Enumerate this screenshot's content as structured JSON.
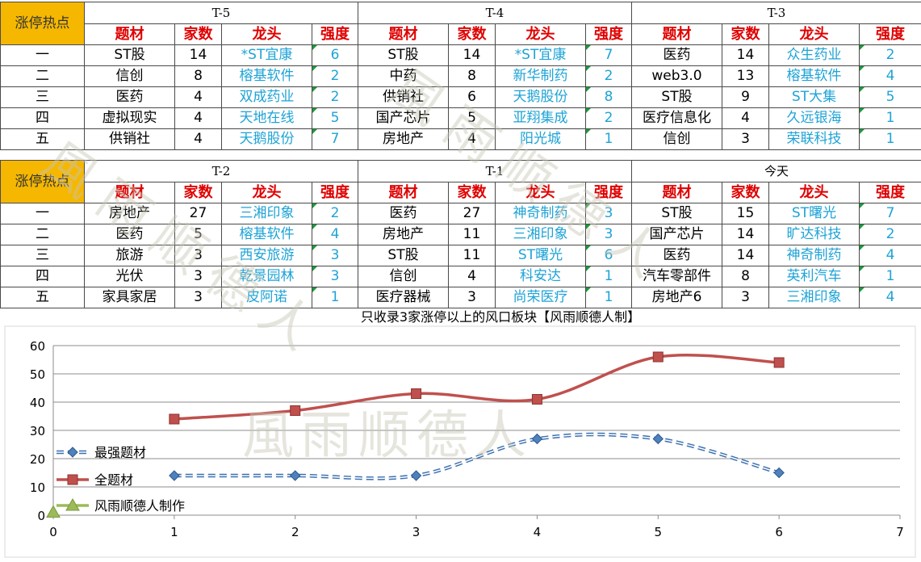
{
  "tables": [
    {
      "corner_label": "涨停热点",
      "col_headers": [
        "题材",
        "家数",
        "龙头",
        "强度"
      ],
      "periods": [
        {
          "label": "T-5",
          "rows": [
            {
              "theme": "ST股",
              "count": "14",
              "leader": "*ST宜康",
              "strength": "6"
            },
            {
              "theme": "信创",
              "count": "8",
              "leader": "榕基软件",
              "strength": "2"
            },
            {
              "theme": "医药",
              "count": "4",
              "leader": "双成药业",
              "strength": "2"
            },
            {
              "theme": "虚拟现实",
              "count": "4",
              "leader": "天地在线",
              "strength": "5"
            },
            {
              "theme": "供销社",
              "count": "4",
              "leader": "天鹅股份",
              "strength": "7"
            }
          ]
        },
        {
          "label": "T-4",
          "rows": [
            {
              "theme": "ST股",
              "count": "14",
              "leader": "*ST宜康",
              "strength": "7"
            },
            {
              "theme": "中药",
              "count": "8",
              "leader": "新华制药",
              "strength": "2"
            },
            {
              "theme": "供销社",
              "count": "6",
              "leader": "天鹅股份",
              "strength": "8"
            },
            {
              "theme": "国产芯片",
              "count": "5",
              "leader": "亚翔集成",
              "strength": "2"
            },
            {
              "theme": "房地产",
              "count": "4",
              "leader": "阳光城",
              "strength": "1"
            }
          ]
        },
        {
          "label": "T-3",
          "rows": [
            {
              "theme": "医药",
              "count": "14",
              "leader": "众生药业",
              "strength": "2"
            },
            {
              "theme": "web3.0",
              "count": "13",
              "leader": "榕基软件",
              "strength": "4"
            },
            {
              "theme": "ST股",
              "count": "9",
              "leader": "ST大集",
              "strength": "5"
            },
            {
              "theme": "医疗信息化",
              "count": "4",
              "leader": "久远银海",
              "strength": "1"
            },
            {
              "theme": "信创",
              "count": "3",
              "leader": "荣联科技",
              "strength": "1"
            }
          ]
        }
      ]
    },
    {
      "corner_label": "涨停热点",
      "col_headers": [
        "题材",
        "家数",
        "龙头",
        "强度"
      ],
      "periods": [
        {
          "label": "T-2",
          "rows": [
            {
              "theme": "房地产",
              "count": "27",
              "leader": "三湘印象",
              "strength": "2"
            },
            {
              "theme": "医药",
              "count": "5",
              "leader": "榕基软件",
              "strength": "4"
            },
            {
              "theme": "旅游",
              "count": "3",
              "leader": "西安旅游",
              "strength": "3"
            },
            {
              "theme": "光伏",
              "count": "3",
              "leader": "乾景园林",
              "strength": "3"
            },
            {
              "theme": "家具家居",
              "count": "3",
              "leader": "皮阿诺",
              "strength": "1"
            }
          ]
        },
        {
          "label": "T-1",
          "rows": [
            {
              "theme": "医药",
              "count": "27",
              "leader": "神奇制药",
              "strength": "3"
            },
            {
              "theme": "房地产",
              "count": "11",
              "leader": "三湘印象",
              "strength": "3"
            },
            {
              "theme": "ST股",
              "count": "11",
              "leader": "ST曙光",
              "strength": "6"
            },
            {
              "theme": "信创",
              "count": "4",
              "leader": "科安达",
              "strength": "1"
            },
            {
              "theme": "医疗器械",
              "count": "3",
              "leader": "尚荣医疗",
              "strength": "1"
            }
          ]
        },
        {
          "label": "今天",
          "rows": [
            {
              "theme": "ST股",
              "count": "15",
              "leader": "ST曙光",
              "strength": "7"
            },
            {
              "theme": "国产芯片",
              "count": "14",
              "leader": "旷达科技",
              "strength": "2"
            },
            {
              "theme": "医药",
              "count": "14",
              "leader": "神奇制药",
              "strength": "4"
            },
            {
              "theme": "汽车零部件",
              "count": "8",
              "leader": "英利汽车",
              "strength": "1"
            },
            {
              "theme": "房地产6",
              "count": "3",
              "leader": "三湘印象",
              "strength": "4"
            }
          ]
        }
      ]
    }
  ],
  "rank_labels": [
    "一",
    "二",
    "三",
    "四",
    "五"
  ],
  "watermark": "風雨顺德人",
  "chart_data": {
    "type": "line",
    "title": "只收录3家涨停以上的风口板块【风雨顺德人制】",
    "xlim": [
      0,
      7
    ],
    "ylim": [
      0,
      60
    ],
    "x_ticks": [
      0,
      1,
      2,
      3,
      4,
      5,
      6,
      7
    ],
    "y_ticks": [
      0,
      10,
      20,
      30,
      40,
      50,
      60
    ],
    "grid": true,
    "legend_position": "left",
    "series": [
      {
        "name": "最强题材",
        "color": "#3a6fb0",
        "marker": "diamond",
        "style": "dashed",
        "x": [
          1,
          2,
          3,
          4,
          5,
          6
        ],
        "y": [
          14,
          14,
          14,
          27,
          27,
          15
        ]
      },
      {
        "name": "全题材",
        "color": "#c0504d",
        "marker": "square",
        "style": "solid",
        "x": [
          1,
          2,
          3,
          4,
          5,
          6
        ],
        "y": [
          34,
          37,
          43,
          41,
          56,
          54
        ]
      },
      {
        "name": "风雨顺德人制作",
        "color": "#9bbb59",
        "marker": "triangle",
        "style": "solid",
        "x": [
          0
        ],
        "y": [
          1
        ]
      }
    ]
  }
}
